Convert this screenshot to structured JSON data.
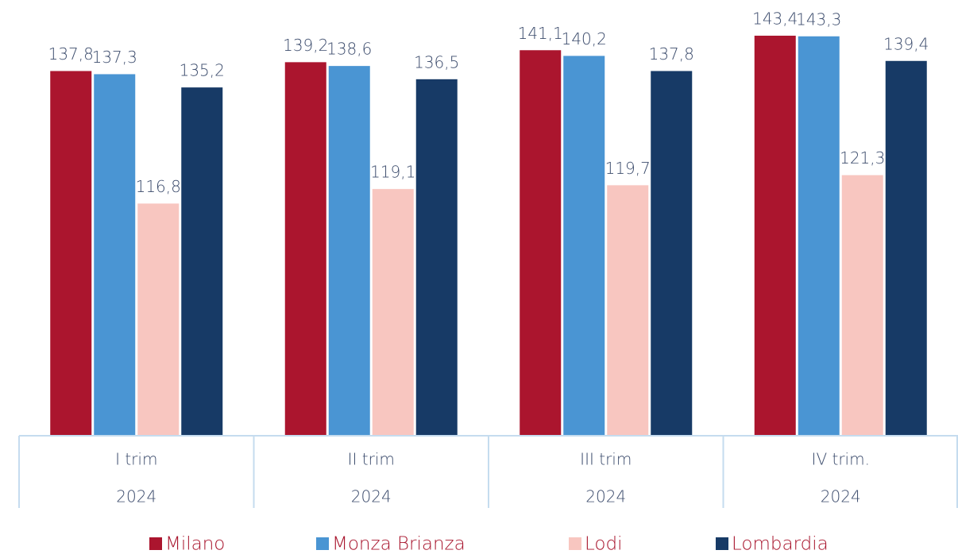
{
  "chart_data": {
    "type": "bar",
    "categories": [
      [
        "I trim",
        "2024"
      ],
      [
        "II trim",
        "2024"
      ],
      [
        "III trim",
        "2024"
      ],
      [
        "IV trim.",
        "2024"
      ]
    ],
    "series": [
      {
        "name": "Milano",
        "color": "#ab152e",
        "values": [
          137.8,
          139.2,
          141.1,
          143.4
        ],
        "value_labels": [
          "137,8",
          "139,2",
          "141,1",
          "143,4"
        ]
      },
      {
        "name": "Monza Brianza",
        "color": "#4a95d3",
        "values": [
          137.3,
          138.6,
          140.2,
          143.3
        ],
        "value_labels": [
          "137,3",
          "138,6",
          "140,2",
          "143,3"
        ]
      },
      {
        "name": "Lodi",
        "color": "#f8c6c0",
        "values": [
          116.8,
          119.1,
          119.7,
          121.3
        ],
        "value_labels": [
          "116,8",
          "119,1",
          "119,7",
          "121,3"
        ]
      },
      {
        "name": "Lombardia",
        "color": "#173a66",
        "values": [
          135.2,
          136.5,
          137.8,
          139.4
        ],
        "value_labels": [
          "135,2",
          "136,5",
          "137,8",
          "139,4"
        ]
      }
    ],
    "ylim": [
      80,
      150
    ],
    "legend": "bottom"
  }
}
